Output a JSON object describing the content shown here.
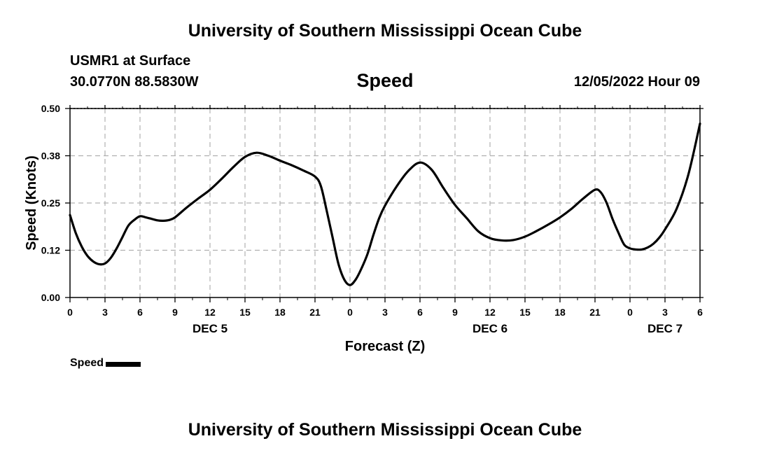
{
  "header": {
    "title": "University of Southern Mississippi Ocean Cube",
    "station": "USMR1 at Surface",
    "coords": "30.0770N  88.5830W",
    "datetime": "12/05/2022 Hour 09"
  },
  "footer": {
    "title": "University of Southern Mississippi Ocean Cube"
  },
  "legend": {
    "label": "Speed",
    "color": "#000000"
  },
  "chart_data": {
    "type": "line",
    "title": "Speed",
    "xlabel": "Forecast (Z)",
    "ylabel": "Speed (Knots)",
    "xlim": [
      0,
      54
    ],
    "ylim": [
      0,
      0.5
    ],
    "grid": true,
    "legend_position": "bottom-left",
    "x_ticks": [
      {
        "x": 0,
        "label": "0"
      },
      {
        "x": 3,
        "label": "3"
      },
      {
        "x": 6,
        "label": "6"
      },
      {
        "x": 9,
        "label": "9"
      },
      {
        "x": 12,
        "label": "12"
      },
      {
        "x": 15,
        "label": "15"
      },
      {
        "x": 18,
        "label": "18"
      },
      {
        "x": 21,
        "label": "21"
      },
      {
        "x": 24,
        "label": "0"
      },
      {
        "x": 27,
        "label": "3"
      },
      {
        "x": 30,
        "label": "6"
      },
      {
        "x": 33,
        "label": "9"
      },
      {
        "x": 36,
        "label": "12"
      },
      {
        "x": 39,
        "label": "15"
      },
      {
        "x": 42,
        "label": "18"
      },
      {
        "x": 45,
        "label": "21"
      },
      {
        "x": 48,
        "label": "0"
      },
      {
        "x": 51,
        "label": "3"
      },
      {
        "x": 54,
        "label": "6"
      }
    ],
    "y_ticks": [
      {
        "y": 0,
        "label": "0.00"
      },
      {
        "y": 0.125,
        "label": "0.12"
      },
      {
        "y": 0.25,
        "label": "0.25"
      },
      {
        "y": 0.375,
        "label": "0.38"
      },
      {
        "y": 0.5,
        "label": "0.50"
      }
    ],
    "date_labels": [
      {
        "x": 12,
        "label": "DEC 5"
      },
      {
        "x": 36,
        "label": "DEC 6"
      },
      {
        "x": 51,
        "label": "DEC 7"
      }
    ],
    "series": [
      {
        "name": "Speed",
        "color": "#000000",
        "x": [
          0,
          0.5,
          1,
          1.5,
          2,
          2.5,
          3,
          3.5,
          4,
          4.5,
          5,
          5.5,
          6,
          6.5,
          7,
          7.5,
          8,
          8.5,
          9,
          10,
          11,
          12,
          13,
          14,
          15,
          16,
          17,
          18,
          19,
          20,
          21,
          21.5,
          22,
          22.5,
          23,
          23.5,
          24,
          24.5,
          25,
          25.5,
          26,
          26.5,
          27,
          28,
          29,
          30,
          31,
          32,
          33,
          34,
          35,
          36,
          37,
          38,
          39,
          40,
          41,
          42,
          43,
          44,
          45,
          45.5,
          46,
          46.5,
          47,
          47.5,
          48,
          48.5,
          49,
          49.5,
          50,
          50.5,
          51,
          52,
          53,
          54
        ],
        "y": [
          0.218,
          0.17,
          0.135,
          0.11,
          0.095,
          0.088,
          0.09,
          0.105,
          0.13,
          0.16,
          0.19,
          0.205,
          0.215,
          0.212,
          0.208,
          0.204,
          0.203,
          0.205,
          0.212,
          0.238,
          0.262,
          0.285,
          0.314,
          0.345,
          0.372,
          0.383,
          0.375,
          0.362,
          0.35,
          0.336,
          0.32,
          0.295,
          0.23,
          0.16,
          0.09,
          0.048,
          0.033,
          0.048,
          0.078,
          0.115,
          0.165,
          0.21,
          0.243,
          0.294,
          0.335,
          0.357,
          0.338,
          0.29,
          0.245,
          0.21,
          0.175,
          0.157,
          0.151,
          0.152,
          0.161,
          0.176,
          0.193,
          0.212,
          0.235,
          0.262,
          0.285,
          0.278,
          0.25,
          0.208,
          0.172,
          0.14,
          0.13,
          0.127,
          0.127,
          0.132,
          0.142,
          0.158,
          0.18,
          0.235,
          0.325,
          0.46
        ]
      }
    ]
  }
}
